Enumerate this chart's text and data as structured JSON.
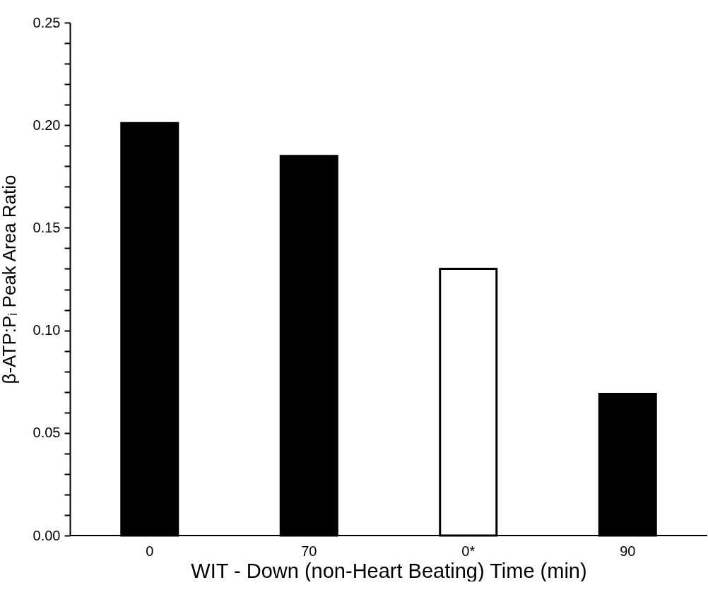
{
  "chart_data": {
    "type": "bar",
    "xlabel": "WIT - Down (non-Heart Beating) Time (min)",
    "ylabel": "β-ATP:Pᵢ Peak Area Ratio",
    "categories": [
      "0",
      "70",
      "0*",
      "90"
    ],
    "values": [
      0.201,
      0.185,
      0.13,
      0.069
    ],
    "colors": [
      "#000000",
      "#000000",
      "#ffffff",
      "#000000"
    ],
    "ylim": [
      0,
      0.25
    ],
    "yticks": [
      {
        "value": 0,
        "label": "0.00"
      },
      {
        "value": 0.01,
        "label": null
      },
      {
        "value": 0.02,
        "label": null
      },
      {
        "value": 0.03,
        "label": null
      },
      {
        "value": 0.04,
        "label": null
      },
      {
        "value": 0.05,
        "label": "0.05"
      },
      {
        "value": 0.06,
        "label": null
      },
      {
        "value": 0.07,
        "label": null
      },
      {
        "value": 0.08,
        "label": null
      },
      {
        "value": 0.09,
        "label": null
      },
      {
        "value": 0.1,
        "label": "0.10"
      },
      {
        "value": 0.11,
        "label": null
      },
      {
        "value": 0.12,
        "label": null
      },
      {
        "value": 0.13,
        "label": null
      },
      {
        "value": 0.14,
        "label": null
      },
      {
        "value": 0.15,
        "label": "0.15"
      },
      {
        "value": 0.16,
        "label": null
      },
      {
        "value": 0.17,
        "label": null
      },
      {
        "value": 0.18,
        "label": null
      },
      {
        "value": 0.19,
        "label": null
      },
      {
        "value": 0.2,
        "label": "0.20"
      },
      {
        "value": 0.21,
        "label": null
      },
      {
        "value": 0.22,
        "label": null
      },
      {
        "value": 0.23,
        "label": null
      },
      {
        "value": 0.24,
        "label": null
      },
      {
        "value": 0.25,
        "label": "0.25"
      }
    ],
    "grid": false
  }
}
